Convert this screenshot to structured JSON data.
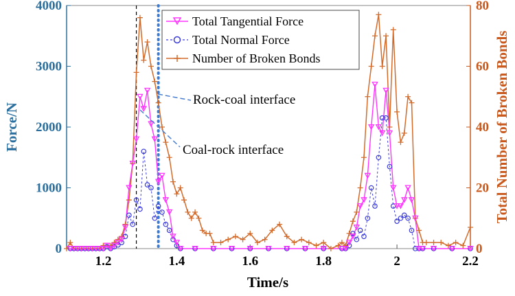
{
  "chart_data": {
    "type": "line",
    "xlabel": "Time/s",
    "ylabel_left": "Force/N",
    "ylabel_right": "Total Number of Broken Bonds",
    "xlim": [
      1.1,
      2.2
    ],
    "ylim_left": [
      0,
      4000
    ],
    "ylim_right": [
      0,
      80
    ],
    "x_ticks": [
      "1.2",
      "1.4",
      "1.6",
      "1.8",
      "2",
      "2.2"
    ],
    "x_tick_values": [
      1.2,
      1.4,
      1.6,
      1.8,
      2.0,
      2.2
    ],
    "y_left_ticks": [
      "0",
      "1000",
      "2000",
      "3000",
      "4000"
    ],
    "y_left_tick_values": [
      0,
      1000,
      2000,
      3000,
      4000
    ],
    "y_right_ticks": [
      "0",
      "20",
      "40",
      "60",
      "80"
    ],
    "y_right_tick_values": [
      0,
      20,
      40,
      60,
      80
    ],
    "legend": {
      "position": "top-left-center"
    },
    "colors": {
      "left_axis": "#2b6f9e",
      "right_axis": "#c8581b",
      "tangential": "#ff33ff",
      "normal": "#3a3ad9",
      "bonds": "#d26a2a",
      "vline_black": "#000000",
      "vline_blue": "#3a7bd5",
      "annotation": "#4a7fd0"
    },
    "series": [
      {
        "name": "Total Tangential Force",
        "axis": "left",
        "marker": "triangle-down",
        "x": [
          1.11,
          1.12,
          1.13,
          1.14,
          1.15,
          1.16,
          1.17,
          1.18,
          1.19,
          1.2,
          1.21,
          1.22,
          1.23,
          1.24,
          1.25,
          1.26,
          1.27,
          1.28,
          1.29,
          1.3,
          1.31,
          1.32,
          1.33,
          1.34,
          1.35,
          1.36,
          1.37,
          1.38,
          1.39,
          1.4,
          1.41,
          1.45,
          1.5,
          1.55,
          1.6,
          1.65,
          1.7,
          1.75,
          1.8,
          1.85,
          1.86,
          1.87,
          1.88,
          1.89,
          1.9,
          1.91,
          1.92,
          1.93,
          1.94,
          1.95,
          1.96,
          1.97,
          1.98,
          1.99,
          2.0,
          2.01,
          2.02,
          2.03,
          2.04,
          2.05,
          2.06,
          2.07,
          2.1,
          2.15,
          2.2
        ],
        "values": [
          0,
          0,
          0,
          0,
          0,
          0,
          0,
          0,
          0,
          0,
          50,
          0,
          50,
          100,
          150,
          350,
          1000,
          1400,
          1800,
          2500,
          2300,
          2600,
          2050,
          1800,
          1100,
          1200,
          800,
          600,
          200,
          100,
          0,
          0,
          0,
          0,
          0,
          0,
          0,
          0,
          0,
          0,
          0,
          100,
          200,
          350,
          700,
          800,
          1200,
          2000,
          2700,
          2000,
          1900,
          2600,
          1900,
          1000,
          700,
          700,
          800,
          1000,
          800,
          500,
          0,
          0,
          0,
          0,
          0
        ]
      },
      {
        "name": "Total Normal Force",
        "axis": "left",
        "marker": "circle",
        "x": [
          1.11,
          1.12,
          1.13,
          1.14,
          1.15,
          1.16,
          1.17,
          1.18,
          1.19,
          1.2,
          1.21,
          1.22,
          1.23,
          1.24,
          1.25,
          1.26,
          1.27,
          1.28,
          1.29,
          1.3,
          1.31,
          1.32,
          1.33,
          1.34,
          1.35,
          1.36,
          1.37,
          1.38,
          1.39,
          1.4,
          1.41,
          1.45,
          1.5,
          1.55,
          1.6,
          1.65,
          1.7,
          1.75,
          1.8,
          1.85,
          1.86,
          1.87,
          1.88,
          1.89,
          1.9,
          1.91,
          1.92,
          1.93,
          1.94,
          1.95,
          1.96,
          1.97,
          1.98,
          1.99,
          2.0,
          2.01,
          2.02,
          2.03,
          2.04,
          2.05,
          2.06,
          2.07,
          2.1,
          2.15,
          2.2
        ],
        "values": [
          0,
          0,
          0,
          0,
          0,
          0,
          0,
          0,
          0,
          0,
          30,
          0,
          30,
          60,
          100,
          200,
          550,
          400,
          800,
          650,
          1600,
          1050,
          1000,
          500,
          700,
          600,
          400,
          300,
          150,
          50,
          0,
          0,
          0,
          0,
          0,
          0,
          0,
          0,
          0,
          0,
          0,
          50,
          250,
          150,
          300,
          200,
          500,
          1000,
          700,
          1500,
          2150,
          2150,
          1350,
          700,
          450,
          500,
          550,
          500,
          300,
          0,
          0,
          0,
          0,
          0,
          0
        ]
      },
      {
        "name": "Number of Broken Bonds",
        "axis": "right",
        "marker": "plus",
        "x": [
          1.1,
          1.11,
          1.12,
          1.13,
          1.14,
          1.15,
          1.16,
          1.17,
          1.18,
          1.19,
          1.2,
          1.21,
          1.22,
          1.23,
          1.24,
          1.25,
          1.26,
          1.27,
          1.28,
          1.29,
          1.3,
          1.31,
          1.32,
          1.33,
          1.34,
          1.35,
          1.36,
          1.37,
          1.38,
          1.39,
          1.4,
          1.41,
          1.42,
          1.43,
          1.44,
          1.45,
          1.46,
          1.47,
          1.48,
          1.49,
          1.5,
          1.52,
          1.54,
          1.56,
          1.58,
          1.6,
          1.62,
          1.64,
          1.66,
          1.68,
          1.7,
          1.72,
          1.74,
          1.76,
          1.78,
          1.8,
          1.82,
          1.84,
          1.85,
          1.86,
          1.87,
          1.88,
          1.89,
          1.9,
          1.91,
          1.92,
          1.93,
          1.94,
          1.95,
          1.96,
          1.97,
          1.98,
          1.99,
          2.0,
          2.01,
          2.02,
          2.03,
          2.04,
          2.05,
          2.06,
          2.07,
          2.08,
          2.1,
          2.12,
          2.14,
          2.16,
          2.18,
          2.2
        ],
        "values": [
          0,
          2,
          0,
          0,
          0,
          0,
          0,
          0,
          0,
          0,
          1,
          1,
          1,
          2,
          3,
          4,
          8,
          16,
          28,
          58,
          76,
          62,
          68,
          60,
          55,
          48,
          40,
          35,
          30,
          22,
          18,
          20,
          16,
          12,
          10,
          12,
          10,
          6,
          5,
          5,
          2,
          2,
          3,
          4,
          3,
          5,
          2,
          3,
          6,
          8,
          4,
          2,
          3,
          2,
          1,
          2,
          0,
          1,
          2,
          1,
          5,
          9,
          12,
          20,
          30,
          50,
          60,
          70,
          77,
          60,
          70,
          40,
          72,
          45,
          35,
          38,
          50,
          48,
          10,
          6,
          2,
          2,
          2,
          2,
          1,
          2,
          1,
          7
        ]
      }
    ],
    "annotations": [
      {
        "text": "Rock-coal interface",
        "x": 1.35,
        "y": 2200
      },
      {
        "text": "Coal-rock interface",
        "x": 1.3,
        "y": 2300
      }
    ],
    "vertical_lines": [
      {
        "x": 1.29,
        "style": "dashed",
        "color": "black"
      },
      {
        "x": 1.35,
        "style": "dotted",
        "color": "blue"
      }
    ]
  }
}
